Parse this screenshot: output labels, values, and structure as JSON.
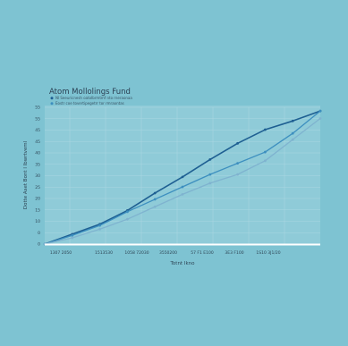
{
  "chart_data": {
    "type": "line",
    "title": "Atom Mollolings Fund",
    "xlabel": "Totnt Ikno",
    "ylabel": "Dotte Aset Bont l Ibwrtveml",
    "x_tick_labels": [
      "1307 2050",
      "1513530",
      "1058 72030",
      "3550200",
      "57 F1 E100",
      "3E3 F100",
      "1S10 3J1/20"
    ],
    "y_tick_labels": [
      "0",
      "0",
      "10",
      "15",
      "20",
      "25",
      "30",
      "35",
      "40",
      "45",
      "45",
      "55",
      "55"
    ],
    "x": [
      0,
      1,
      2,
      3,
      4,
      5,
      6,
      7,
      8,
      9,
      10
    ],
    "ylim": [
      0,
      55
    ],
    "grid": true,
    "legend_position": "top-left",
    "series": [
      {
        "name": "Nl Seeuricnesh oatoIbrmtmf nto rneraonaa",
        "color": "#1e5f92",
        "values": [
          0,
          4,
          8,
          13.5,
          20.5,
          27,
          34,
          40.5,
          46,
          49.5,
          53.5
        ]
      },
      {
        "name": "Eostr coe tovertipegetrr tor rmraontas",
        "color": "#3d8fbf",
        "values": [
          0,
          3.5,
          7.5,
          13,
          18,
          23,
          28,
          32.5,
          37,
          44.5,
          53.5
        ]
      },
      {
        "name": "",
        "color": "#7fb3cf",
        "values": [
          0,
          2.5,
          6,
          10,
          15,
          20,
          24.5,
          28,
          33.5,
          42,
          50.5
        ]
      }
    ]
  }
}
